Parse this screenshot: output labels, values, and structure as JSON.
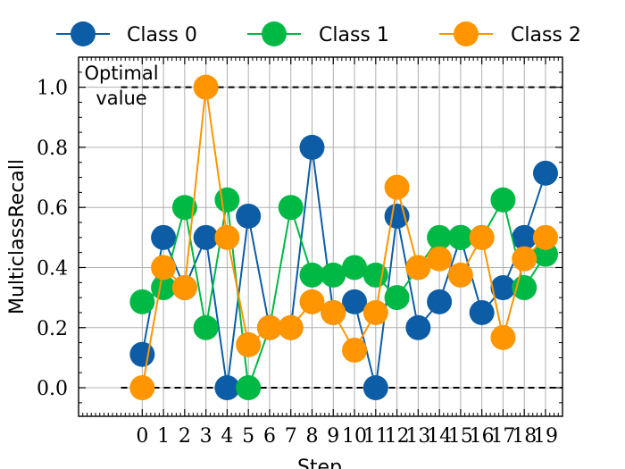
{
  "chart_data": {
    "type": "line",
    "xlabel": "Step",
    "ylabel": "MulticlassRecall",
    "x": [
      0,
      1,
      2,
      3,
      4,
      5,
      6,
      7,
      8,
      9,
      10,
      11,
      12,
      13,
      14,
      15,
      16,
      17,
      18,
      19
    ],
    "xlim": [
      -3,
      19.8
    ],
    "ylim": [
      -0.095,
      1.1
    ],
    "yticks": [
      "0.0",
      "0.2",
      "0.4",
      "0.6",
      "0.8",
      "1.0"
    ],
    "xticks": [
      "0",
      "1",
      "2",
      "3",
      "4",
      "5",
      "6",
      "7",
      "8",
      "9",
      "10",
      "11",
      "12",
      "13",
      "14",
      "15",
      "16",
      "17",
      "18",
      "19"
    ],
    "grid": true,
    "legend_position": "top",
    "series": [
      {
        "name": "Class 0",
        "color": "#0C5DA5",
        "values": [
          0.111,
          0.5,
          0.333,
          0.5,
          0.0,
          0.571,
          0.2,
          0.2,
          0.8,
          0.25,
          0.286,
          0.0,
          0.571,
          0.2,
          0.286,
          0.5,
          0.25,
          0.333,
          0.5,
          0.714
        ]
      },
      {
        "name": "Class 1",
        "color": "#00B945",
        "values": [
          0.286,
          0.333,
          0.6,
          0.2,
          0.625,
          0.0,
          0.2,
          0.6,
          0.375,
          0.375,
          0.4,
          0.375,
          0.3,
          0.4,
          0.5,
          0.5,
          0.5,
          0.625,
          0.333,
          0.444
        ]
      },
      {
        "name": "Class 2",
        "color": "#FF9500",
        "values": [
          0.0,
          0.4,
          0.333,
          1.0,
          0.5,
          0.143,
          0.2,
          0.2,
          0.286,
          0.25,
          0.125,
          0.25,
          0.667,
          0.4,
          0.429,
          0.375,
          0.5,
          0.167,
          0.429,
          0.5
        ]
      }
    ],
    "reference_lines": [
      {
        "y": 1.0,
        "label": "Optimal value"
      },
      {
        "y": 0.0,
        "label": ""
      }
    ]
  },
  "annotation": {
    "line1": "Optimal",
    "line2": "value"
  }
}
